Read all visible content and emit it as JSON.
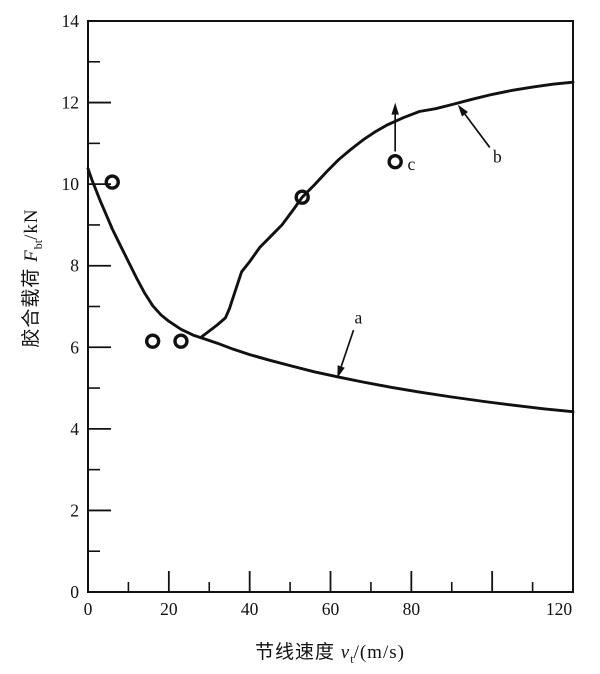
{
  "figure": {
    "background": "#ffffff",
    "ink_color": "#111111"
  },
  "axis_labels": {
    "ylabel": {
      "prefix": "胶合载荷 ",
      "symbol": "F",
      "sub": "bt",
      "suffix": "/kN"
    },
    "xlabel": {
      "prefix": "节线速度 ",
      "symbol": "v",
      "sub": "t",
      "suffix": "/(m/s)"
    }
  },
  "chart_data": {
    "type": "line",
    "title": "",
    "xlabel": "节线速度 vt/(m/s)",
    "ylabel": "胶合载荷 Fbt/kN",
    "xlim": [
      0,
      120
    ],
    "ylim": [
      0,
      14
    ],
    "grid": false,
    "legend": "none",
    "frame": "full-box",
    "x_ticks": [
      {
        "v": 0,
        "label": "0"
      },
      {
        "v": 20,
        "label": "20"
      },
      {
        "v": 40,
        "label": "40"
      },
      {
        "v": 60,
        "label": "60"
      },
      {
        "v": 80,
        "label": "80"
      },
      {
        "v": 100,
        "label": ""
      },
      {
        "v": 120,
        "label": "120",
        "dx": -14
      }
    ],
    "x_minor_ticks": [
      10,
      30,
      50,
      70,
      90,
      110
    ],
    "y_ticks": [
      {
        "v": 0,
        "label": "0"
      },
      {
        "v": 2,
        "label": "2"
      },
      {
        "v": 4,
        "label": "4"
      },
      {
        "v": 6,
        "label": "6"
      },
      {
        "v": 8,
        "label": "8"
      },
      {
        "v": 10,
        "label": "10"
      },
      {
        "v": 12,
        "label": "12"
      },
      {
        "v": 14,
        "label": "14"
      }
    ],
    "y_minor_ticks": [
      1,
      3,
      5,
      7,
      9,
      11,
      13
    ],
    "series": [
      {
        "name": "curve-a",
        "type": "line",
        "points": [
          [
            0,
            10.38
          ],
          [
            1,
            10.1
          ],
          [
            2,
            9.85
          ],
          [
            3,
            9.6
          ],
          [
            4.5,
            9.25
          ],
          [
            6,
            8.9
          ],
          [
            8,
            8.5
          ],
          [
            10,
            8.1
          ],
          [
            12,
            7.7
          ],
          [
            14,
            7.33
          ],
          [
            16,
            7.02
          ],
          [
            18,
            6.8
          ],
          [
            20,
            6.64
          ],
          [
            23,
            6.44
          ],
          [
            26,
            6.3
          ],
          [
            29,
            6.2
          ],
          [
            32,
            6.1
          ],
          [
            36,
            5.95
          ],
          [
            40,
            5.82
          ],
          [
            45,
            5.68
          ],
          [
            50,
            5.55
          ],
          [
            56,
            5.4
          ],
          [
            62,
            5.27
          ],
          [
            68,
            5.15
          ],
          [
            75,
            5.02
          ],
          [
            82,
            4.9
          ],
          [
            90,
            4.78
          ],
          [
            98,
            4.67
          ],
          [
            106,
            4.57
          ],
          [
            113,
            4.49
          ],
          [
            120,
            4.42
          ]
        ]
      },
      {
        "name": "curve-b",
        "type": "line",
        "points": [
          [
            28,
            6.25
          ],
          [
            30,
            6.4
          ],
          [
            32,
            6.55
          ],
          [
            34,
            6.72
          ],
          [
            35,
            6.95
          ],
          [
            36.5,
            7.4
          ],
          [
            38,
            7.85
          ],
          [
            40,
            8.1
          ],
          [
            42.5,
            8.45
          ],
          [
            45,
            8.7
          ],
          [
            48,
            9.0
          ],
          [
            51,
            9.4
          ],
          [
            53,
            9.68
          ],
          [
            56,
            9.98
          ],
          [
            59,
            10.3
          ],
          [
            62,
            10.6
          ],
          [
            65,
            10.85
          ],
          [
            68,
            11.08
          ],
          [
            71,
            11.28
          ],
          [
            74,
            11.45
          ],
          [
            78,
            11.63
          ],
          [
            82,
            11.78
          ],
          [
            86,
            11.85
          ],
          [
            90,
            11.95
          ],
          [
            95,
            12.08
          ],
          [
            100,
            12.2
          ],
          [
            105,
            12.3
          ],
          [
            110,
            12.38
          ],
          [
            115,
            12.45
          ],
          [
            120,
            12.5
          ]
        ]
      },
      {
        "name": "measured-points",
        "type": "scatter",
        "marker": "open-circle",
        "points": [
          [
            6,
            10.05
          ],
          [
            16,
            6.15
          ],
          [
            23,
            6.15
          ],
          [
            53,
            9.68
          ],
          [
            76,
            10.55
          ]
        ]
      }
    ],
    "annotations": [
      {
        "id": "label-a",
        "text": "a",
        "text_pos": [
          66.9,
          6.73
        ],
        "arrow_tail": [
          65.7,
          6.42
        ],
        "arrow_tip": [
          61.7,
          5.25
        ]
      },
      {
        "id": "label-b",
        "text": "b",
        "text_pos": [
          101.3,
          10.68
        ],
        "arrow_tail": [
          99.4,
          10.9
        ],
        "arrow_tip": [
          91.5,
          11.95
        ]
      },
      {
        "id": "label-c",
        "text": "c",
        "text_pos": [
          80,
          10.5
        ]
      },
      {
        "id": "runout-arrow-c",
        "text": "",
        "arrow_tail": [
          76,
          10.8
        ],
        "arrow_tip": [
          76,
          12.0
        ]
      }
    ]
  }
}
